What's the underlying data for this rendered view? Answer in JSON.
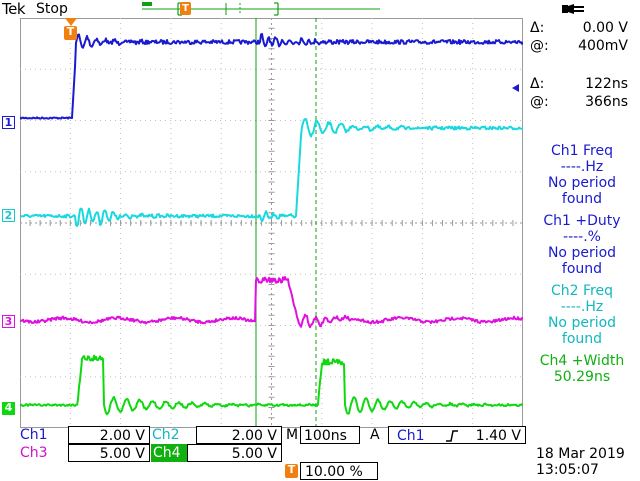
{
  "header": {
    "brand_bold": "Tek",
    "run_state": "Stop",
    "trigger_marker_glyph": "T"
  },
  "icons": {
    "power": "plug-icon",
    "trigger": "trigger-T-icon",
    "slope": "rising-edge-icon"
  },
  "colors": {
    "ch1": "#1a1ad0",
    "ch2": "#18d8e0",
    "ch3": "#e010e0",
    "ch4": "#10d810",
    "trigger": "#f08010",
    "grid": "#9a9a9a"
  },
  "cursors": {
    "v_delta_symbol": "Δ:",
    "v_delta": "0.00 V",
    "v_at_symbol": "@:",
    "v_at": "400mV",
    "t_delta_symbol": "Δ:",
    "t_delta": "122ns",
    "t_at_symbol": "@:",
    "t_at": "366ns"
  },
  "channel_markers": [
    "1",
    "2",
    "3",
    "4"
  ],
  "measurements": [
    {
      "title": "Ch1 Freq",
      "value": "----.Hz",
      "line2": "No period",
      "line3": "found",
      "color": "ch1"
    },
    {
      "title": "Ch1 +Duty",
      "value": "----.%",
      "line2": "No period",
      "line3": "found",
      "color": "ch1"
    },
    {
      "title": "Ch2 Freq",
      "value": "----.Hz",
      "line2": "No period",
      "line3": "found",
      "color": "ch2"
    },
    {
      "title": "Ch4 +Width",
      "value": "50.29ns",
      "color": "ch4"
    }
  ],
  "bottom": {
    "ch1_label": "Ch1",
    "ch1_scale": "2.00 V",
    "ch2_label": "Ch2",
    "ch2_scale": "2.00 V",
    "ch3_label": "Ch3",
    "ch3_scale": "5.00 V",
    "ch4_label": "Ch4",
    "ch4_scale": "5.00 V",
    "timebase_label": "M",
    "timebase": "100ns",
    "trigger_mode": "A",
    "trigger_source": "Ch1",
    "trigger_level": "1.40 V",
    "trigger_position": "10.00 %",
    "date": "18 Mar  2019",
    "time": "13:05:07"
  }
}
